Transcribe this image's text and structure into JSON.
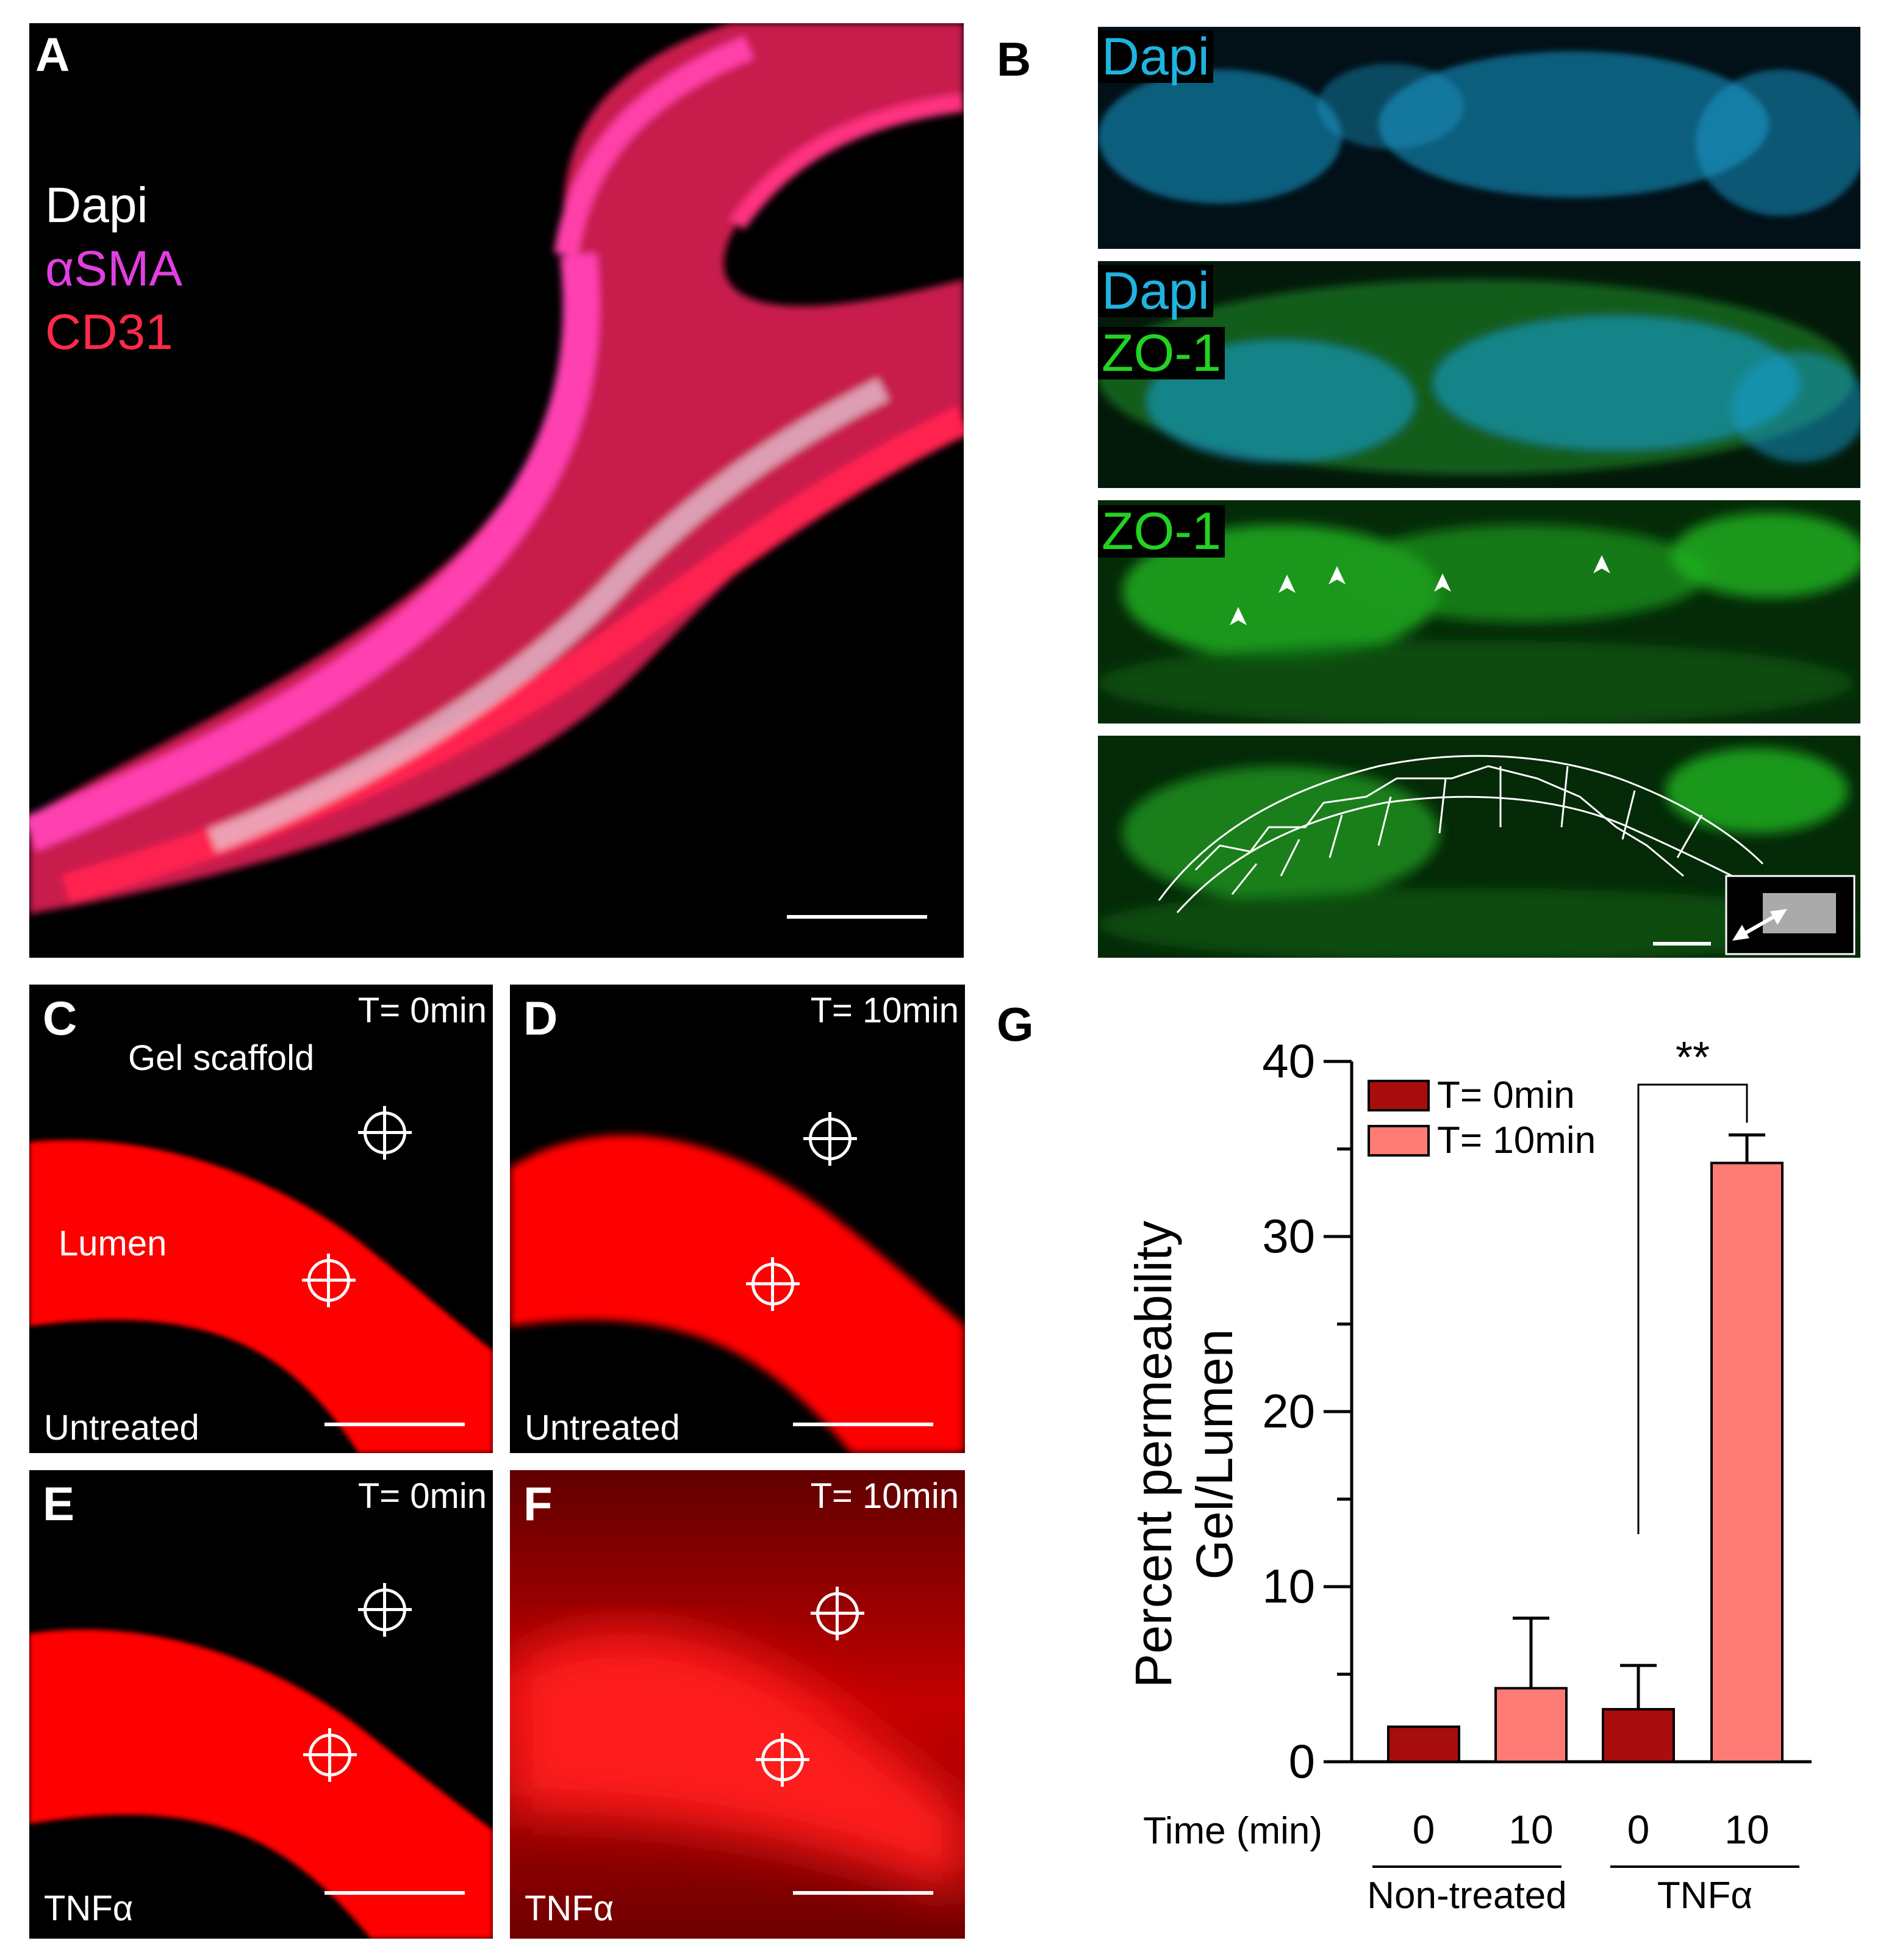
{
  "panel_a": {
    "letter": "A",
    "legend": [
      "Dapi",
      "αSMA",
      "CD31"
    ],
    "legend_colors": [
      "#ffffff",
      "#e040e0",
      "#ff2a4a"
    ]
  },
  "panel_b": {
    "letter": "B",
    "strips": [
      {
        "labels": [
          "Dapi"
        ],
        "label_colors": [
          "#1fb4e0"
        ]
      },
      {
        "labels": [
          "Dapi",
          "ZO-1"
        ],
        "label_colors": [
          "#1fb4e0",
          "#22d422"
        ]
      },
      {
        "labels": [
          "ZO-1"
        ],
        "label_colors": [
          "#22d422"
        ]
      },
      {
        "labels": [],
        "label_colors": []
      }
    ]
  },
  "panel_c": {
    "letter": "C",
    "time": "T= 0min",
    "gel_label": "Gel scaffold",
    "lumen_label": "Lumen",
    "condition": "Untreated"
  },
  "panel_d": {
    "letter": "D",
    "time": "T= 10min",
    "condition": "Untreated"
  },
  "panel_e": {
    "letter": "E",
    "time": "T= 0min",
    "condition": "TNFα"
  },
  "panel_f": {
    "letter": "F",
    "time": "T= 10min",
    "condition": "TNFα"
  },
  "chart_data": {
    "type": "bar",
    "panel_letter": "G",
    "ylabel_line1": "Percent permeability",
    "ylabel_line2": "Gel/Lumen",
    "xlabel": "Time (min)",
    "ylim": [
      0,
      40
    ],
    "yticks": [
      0,
      10,
      20,
      30,
      40
    ],
    "legend": [
      {
        "name": "T= 0min",
        "color": "#a80d0d"
      },
      {
        "name": "T= 10min",
        "color": "#ff7b76"
      }
    ],
    "legend_position": "top-left",
    "groups": [
      "Non-treated",
      "TNFα"
    ],
    "bars": [
      {
        "group": "Non-treated",
        "time": "0",
        "series": "T= 0min",
        "value": 2.0,
        "error": 0
      },
      {
        "group": "Non-treated",
        "time": "10",
        "series": "T= 10min",
        "value": 4.2,
        "error": 4.0
      },
      {
        "group": "TNFα",
        "time": "0",
        "series": "T= 0min",
        "value": 3.0,
        "error": 2.5
      },
      {
        "group": "TNFα",
        "time": "10",
        "series": "T= 10min",
        "value": 34.2,
        "error": 1.6
      }
    ],
    "significance": "**"
  }
}
